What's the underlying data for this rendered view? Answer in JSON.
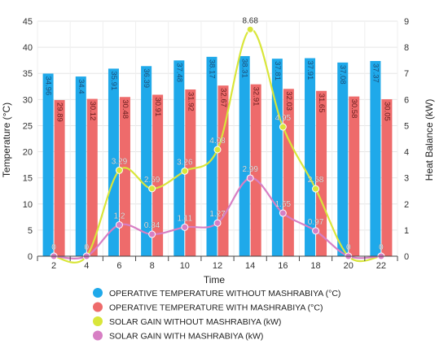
{
  "chart_data": {
    "type": "bar",
    "x": [
      2,
      4,
      6,
      8,
      10,
      12,
      14,
      16,
      18,
      20,
      22
    ],
    "xlabel": "Time",
    "ylabel_left": "Temperature (°C)",
    "ylabel_right": "Heat Balance (kW)",
    "ylim_left": [
      0,
      45
    ],
    "ylim_right": [
      0,
      9
    ],
    "yticks_left": [
      0,
      5,
      10,
      15,
      20,
      25,
      30,
      35,
      40,
      45
    ],
    "yticks_right": [
      0,
      1,
      2,
      3,
      4,
      5,
      6,
      7,
      8,
      9
    ],
    "grid": true,
    "legend_position": "bottom",
    "series": [
      {
        "name": "OPERATIVE TEMPERATURE WITHOUT MASHRABIYA (°C)",
        "kind": "bar",
        "axis": "left",
        "color": "#1fa9ea",
        "labels": [
          "34.96",
          "34.4",
          "35.91",
          "36.39",
          "37.48",
          "38.17",
          "38.31",
          "37.81",
          "37.91",
          "37.08",
          "37.37"
        ],
        "values": [
          34.96,
          34.4,
          35.91,
          36.39,
          37.48,
          38.17,
          38.31,
          37.81,
          37.91,
          37.08,
          37.37
        ]
      },
      {
        "name": "OPERATIVE TEMPERATURE WITH MASHRABIYA (°C)",
        "kind": "bar",
        "axis": "left",
        "color": "#ee6b6b",
        "labels": [
          "29.89",
          "30.12",
          "30.48",
          "30.91",
          "31.92",
          "32.67",
          "32.91",
          "32.03",
          "31.65",
          "30.58",
          "30.05"
        ],
        "values": [
          29.89,
          30.12,
          30.48,
          30.91,
          31.92,
          32.67,
          32.91,
          32.03,
          31.65,
          30.58,
          30.05
        ]
      },
      {
        "name": "SOLAR GAIN WITHOUT MASHRABIYA (kW)",
        "kind": "line",
        "axis": "right",
        "color": "#d9e63a",
        "labels": [
          "0",
          "0",
          "3.29",
          "2.59",
          "3.26",
          "4.08",
          "8.68",
          "4.95",
          "2.58",
          "0",
          "0"
        ],
        "values": [
          0,
          0,
          3.29,
          2.59,
          3.26,
          4.08,
          8.68,
          4.95,
          2.58,
          0,
          0
        ]
      },
      {
        "name": "SOLAR GAIN WITH MASHRABIYA (kW)",
        "kind": "line",
        "axis": "right",
        "color": "#d77fc4",
        "labels": [
          "0",
          "0",
          "1.2",
          "0.84",
          "1.11",
          "1.27",
          "2.99",
          "1.65",
          "0.97",
          "0",
          "0"
        ],
        "values": [
          0,
          0,
          1.2,
          0.84,
          1.11,
          1.27,
          2.99,
          1.65,
          0.97,
          0,
          0
        ]
      }
    ]
  }
}
